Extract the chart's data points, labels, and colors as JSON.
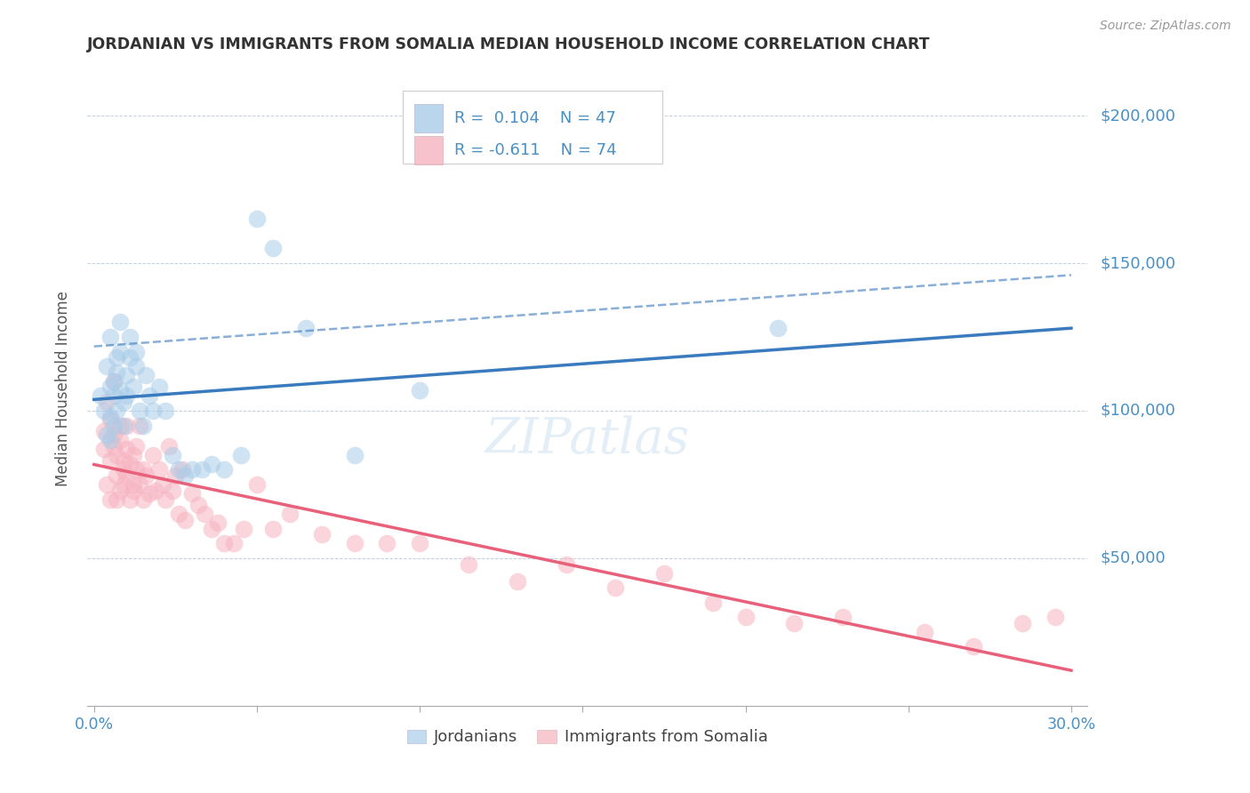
{
  "title": "JORDANIAN VS IMMIGRANTS FROM SOMALIA MEDIAN HOUSEHOLD INCOME CORRELATION CHART",
  "source": "Source: ZipAtlas.com",
  "ylabel": "Median Household Income",
  "ytick_vals": [
    0,
    50000,
    100000,
    150000,
    200000
  ],
  "ytick_labels": [
    "",
    "$50,000",
    "$100,000",
    "$150,000",
    "$200,000"
  ],
  "xlabel_vals": [
    0.0,
    0.05,
    0.1,
    0.15,
    0.2,
    0.25,
    0.3
  ],
  "xlabel_ticks": [
    "0.0%",
    "",
    "",
    "",
    "",
    "",
    "30.0%"
  ],
  "ylim": [
    0,
    215000
  ],
  "xlim": [
    -0.002,
    0.305
  ],
  "jordanian_R": 0.104,
  "jordanian_N": 47,
  "somalia_R": -0.611,
  "somalia_N": 74,
  "color_blue": "#a8cce8",
  "color_pink": "#f7b3c0",
  "color_blue_line": "#3a7bbf",
  "color_pink_line": "#e8607a",
  "color_blue_label": "#4a90c4",
  "color_dark": "#333333",
  "background": "#ffffff",
  "legend_label1": "Jordanians",
  "legend_label2": "Immigrants from Somalia",
  "jordanian_x": [
    0.002,
    0.003,
    0.004,
    0.004,
    0.005,
    0.005,
    0.005,
    0.005,
    0.006,
    0.006,
    0.006,
    0.007,
    0.007,
    0.007,
    0.008,
    0.008,
    0.008,
    0.009,
    0.009,
    0.01,
    0.01,
    0.011,
    0.011,
    0.012,
    0.013,
    0.013,
    0.014,
    0.015,
    0.016,
    0.017,
    0.018,
    0.02,
    0.022,
    0.024,
    0.026,
    0.028,
    0.03,
    0.033,
    0.036,
    0.04,
    0.045,
    0.05,
    0.055,
    0.065,
    0.08,
    0.1,
    0.21
  ],
  "jordanian_y": [
    105000,
    100000,
    92000,
    115000,
    108000,
    98000,
    125000,
    90000,
    110000,
    95000,
    105000,
    113000,
    118000,
    100000,
    107000,
    130000,
    120000,
    103000,
    95000,
    112000,
    105000,
    125000,
    118000,
    108000,
    115000,
    120000,
    100000,
    95000,
    112000,
    105000,
    100000,
    108000,
    100000,
    85000,
    80000,
    78000,
    80000,
    80000,
    82000,
    80000,
    85000,
    165000,
    155000,
    128000,
    85000,
    107000,
    128000
  ],
  "somalia_x": [
    0.003,
    0.003,
    0.004,
    0.004,
    0.005,
    0.005,
    0.005,
    0.006,
    0.006,
    0.006,
    0.007,
    0.007,
    0.007,
    0.008,
    0.008,
    0.008,
    0.009,
    0.009,
    0.009,
    0.01,
    0.01,
    0.01,
    0.011,
    0.011,
    0.012,
    0.012,
    0.012,
    0.013,
    0.013,
    0.014,
    0.014,
    0.015,
    0.015,
    0.016,
    0.017,
    0.018,
    0.019,
    0.02,
    0.021,
    0.022,
    0.023,
    0.024,
    0.025,
    0.026,
    0.027,
    0.028,
    0.03,
    0.032,
    0.034,
    0.036,
    0.038,
    0.04,
    0.043,
    0.046,
    0.05,
    0.055,
    0.06,
    0.07,
    0.08,
    0.09,
    0.1,
    0.115,
    0.13,
    0.145,
    0.16,
    0.175,
    0.19,
    0.2,
    0.215,
    0.23,
    0.255,
    0.27,
    0.285,
    0.295
  ],
  "somalia_y": [
    93000,
    87000,
    103000,
    75000,
    97000,
    83000,
    70000,
    110000,
    88000,
    92000,
    78000,
    70000,
    85000,
    95000,
    73000,
    90000,
    80000,
    75000,
    83000,
    95000,
    87000,
    78000,
    70000,
    82000,
    73000,
    85000,
    75000,
    88000,
    80000,
    75000,
    95000,
    70000,
    80000,
    78000,
    72000,
    85000,
    73000,
    80000,
    75000,
    70000,
    88000,
    73000,
    78000,
    65000,
    80000,
    63000,
    72000,
    68000,
    65000,
    60000,
    62000,
    55000,
    55000,
    60000,
    75000,
    60000,
    65000,
    58000,
    55000,
    55000,
    55000,
    48000,
    42000,
    48000,
    40000,
    45000,
    35000,
    30000,
    28000,
    30000,
    25000,
    20000,
    28000,
    30000
  ]
}
